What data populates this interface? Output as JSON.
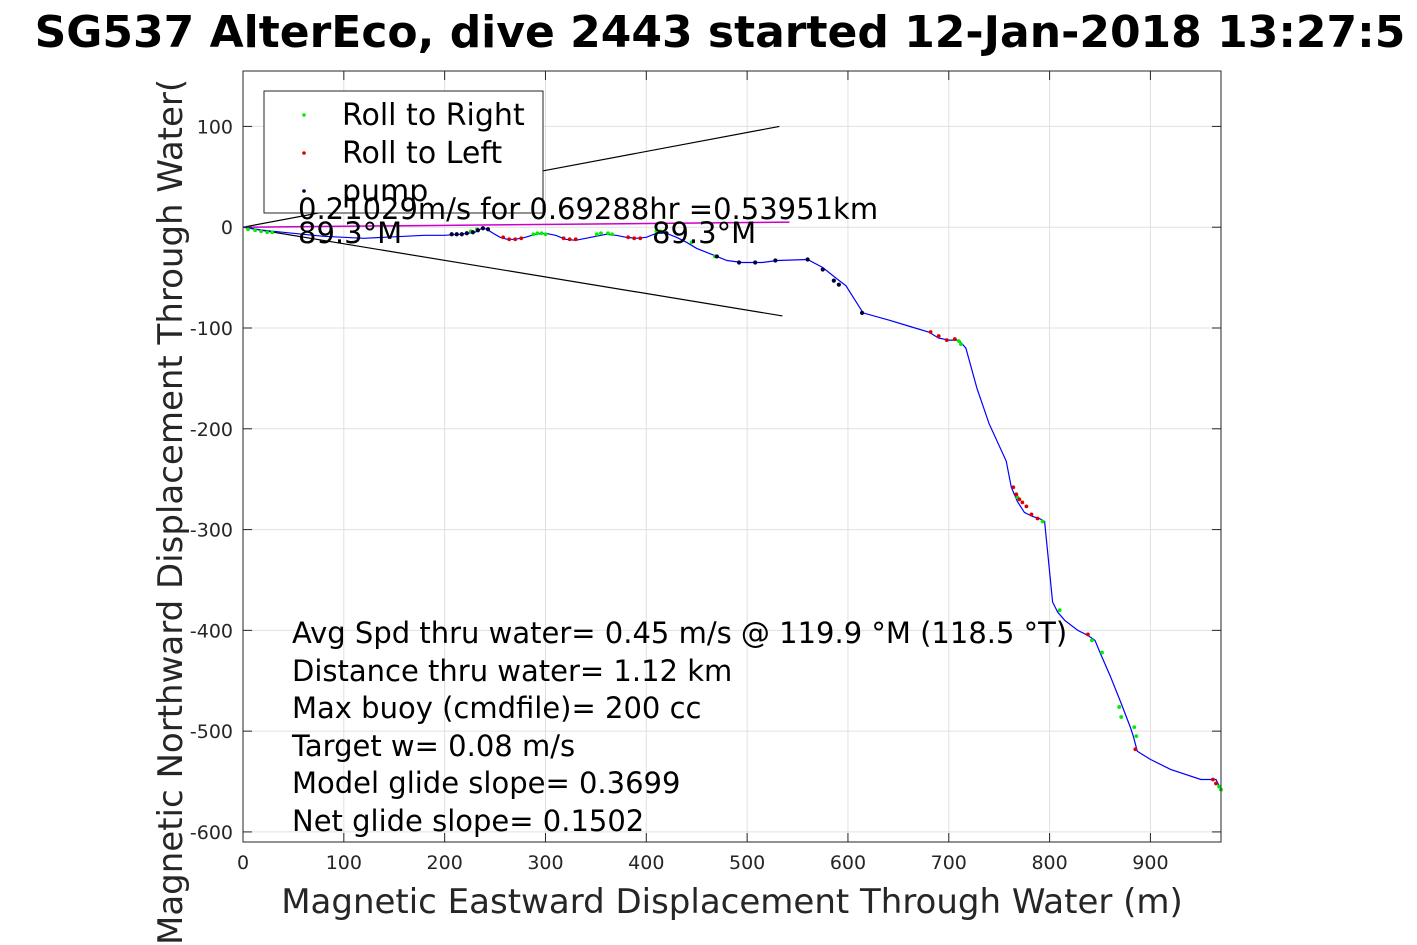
{
  "chart_data": {
    "type": "scatter",
    "title": "SG537 AlterEco, dive 2443 started 12-Jan-2018 13:27:5",
    "xlabel": "Magnetic Eastward Displacement Through Water (m)",
    "ylabel": "Magnetic Northward Displacement Through Water(",
    "xlim": [
      0,
      970
    ],
    "ylim": [
      -610,
      155
    ],
    "grid": true,
    "legend_position": "top-left",
    "x_ticks": [
      "0",
      "100",
      "200",
      "300",
      "400",
      "500",
      "600",
      "700",
      "800",
      "900"
    ],
    "y_ticks": [
      "100",
      "0",
      "-100",
      "-200",
      "-300",
      "-400",
      "-500",
      "-600"
    ],
    "colors": {
      "track": "#0000ff",
      "roll_right": "#00ee00",
      "roll_left": "#dd0000",
      "pump": "#000033",
      "magenta": "#cc00cc",
      "grid": "#e0e0e0",
      "axes": "#262626"
    },
    "track": {
      "name": "",
      "x": [
        0,
        20,
        40,
        60,
        80,
        100,
        120,
        140,
        160,
        180,
        200,
        215,
        230,
        237,
        242,
        248,
        255,
        262,
        270,
        280,
        290,
        300,
        310,
        320,
        330,
        340,
        350,
        360,
        370,
        380,
        390,
        400,
        410,
        420,
        430,
        440,
        450,
        460,
        470,
        480,
        495,
        515,
        530,
        560,
        575,
        590,
        598,
        615,
        640,
        660,
        680,
        690,
        700,
        710,
        717,
        728,
        740,
        757,
        762,
        768,
        775,
        783,
        790,
        795,
        803,
        808,
        815,
        828,
        838,
        845,
        850,
        860,
        870,
        880,
        883,
        887,
        900,
        920,
        950,
        965,
        970
      ],
      "y": [
        0,
        -3,
        -5,
        -7,
        -9,
        -10,
        -11,
        -10,
        -9,
        -8,
        -8,
        -7,
        -5,
        -1,
        -2,
        -6,
        -10,
        -12,
        -12,
        -10,
        -7,
        -6,
        -8,
        -12,
        -13,
        -11,
        -9,
        -7,
        -8,
        -10,
        -11,
        -10,
        -6,
        -6,
        -10,
        -15,
        -21,
        -25,
        -29,
        -33,
        -35,
        -35,
        -33,
        -32,
        -40,
        -52,
        -58,
        -85,
        -92,
        -98,
        -104,
        -110,
        -112,
        -112,
        -120,
        -160,
        -195,
        -232,
        -258,
        -272,
        -283,
        -287,
        -289,
        -292,
        -372,
        -382,
        -390,
        -400,
        -405,
        -410,
        -422,
        -445,
        -470,
        -496,
        -505,
        -520,
        -528,
        -538,
        -548,
        -548,
        -558
      ]
    },
    "roll_right": {
      "name": "Roll to Right",
      "x": [
        5,
        12,
        18,
        24,
        29,
        226,
        232,
        288,
        292,
        296,
        300,
        351,
        355,
        362,
        366,
        410,
        414,
        418,
        445,
        468,
        710,
        712,
        768,
        793,
        810,
        842,
        852,
        869,
        871,
        884,
        886,
        968,
        970
      ],
      "y": [
        -2,
        -3,
        -4,
        -5,
        -5,
        -4,
        -2,
        -7,
        -6,
        -6,
        -7,
        -7,
        -6,
        -6,
        -7,
        -4,
        -4,
        -5,
        -15,
        -29,
        -113,
        -116,
        -268,
        -292,
        -380,
        -410,
        -422,
        -476,
        -486,
        -496,
        -505,
        -555,
        -558
      ]
    },
    "roll_left": {
      "name": "Roll to Left",
      "x": [
        258,
        264,
        270,
        276,
        318,
        324,
        330,
        382,
        388,
        394,
        682,
        690,
        698,
        706,
        764,
        767,
        770,
        773,
        777,
        782,
        788,
        838,
        885,
        962,
        965
      ],
      "y": [
        -10,
        -12,
        -12,
        -11,
        -11,
        -12,
        -12,
        -10,
        -11,
        -11,
        -104,
        -108,
        -112,
        -111,
        -258,
        -265,
        -270,
        -273,
        -277,
        -285,
        -289,
        -404,
        -518,
        -548,
        -552
      ]
    },
    "pump": {
      "name": "pump",
      "x": [
        207,
        212,
        217,
        222,
        228,
        233,
        238,
        243,
        420,
        470,
        492,
        508,
        528,
        560,
        575,
        586,
        591,
        614
      ],
      "y": [
        -7,
        -7,
        -7,
        -6,
        -5,
        -3,
        -1,
        -2,
        -6,
        -29,
        -35,
        -35,
        -33,
        -32,
        -42,
        -53,
        -57,
        -85
      ]
    },
    "wind_cone": {
      "upper_end": [
        532,
        100
      ],
      "lower_end": [
        535,
        -88
      ],
      "center_end": [
        542,
        5
      ]
    },
    "annotations": {
      "current_speed": "0.21029m/s for 0.69288hr =0.53951km",
      "heading_left": "89.3°M",
      "heading_right": "89.3°M"
    },
    "stats": [
      "Avg Spd thru water=  0.45 m/s @ 119.9 °M (118.5 °T)",
      "Distance thru water=  1.12 km",
      "Max buoy (cmdfile)= 200 cc",
      "Target w= 0.08 m/s",
      "Model glide slope= 0.3699",
      "Net glide slope= 0.1502"
    ]
  }
}
